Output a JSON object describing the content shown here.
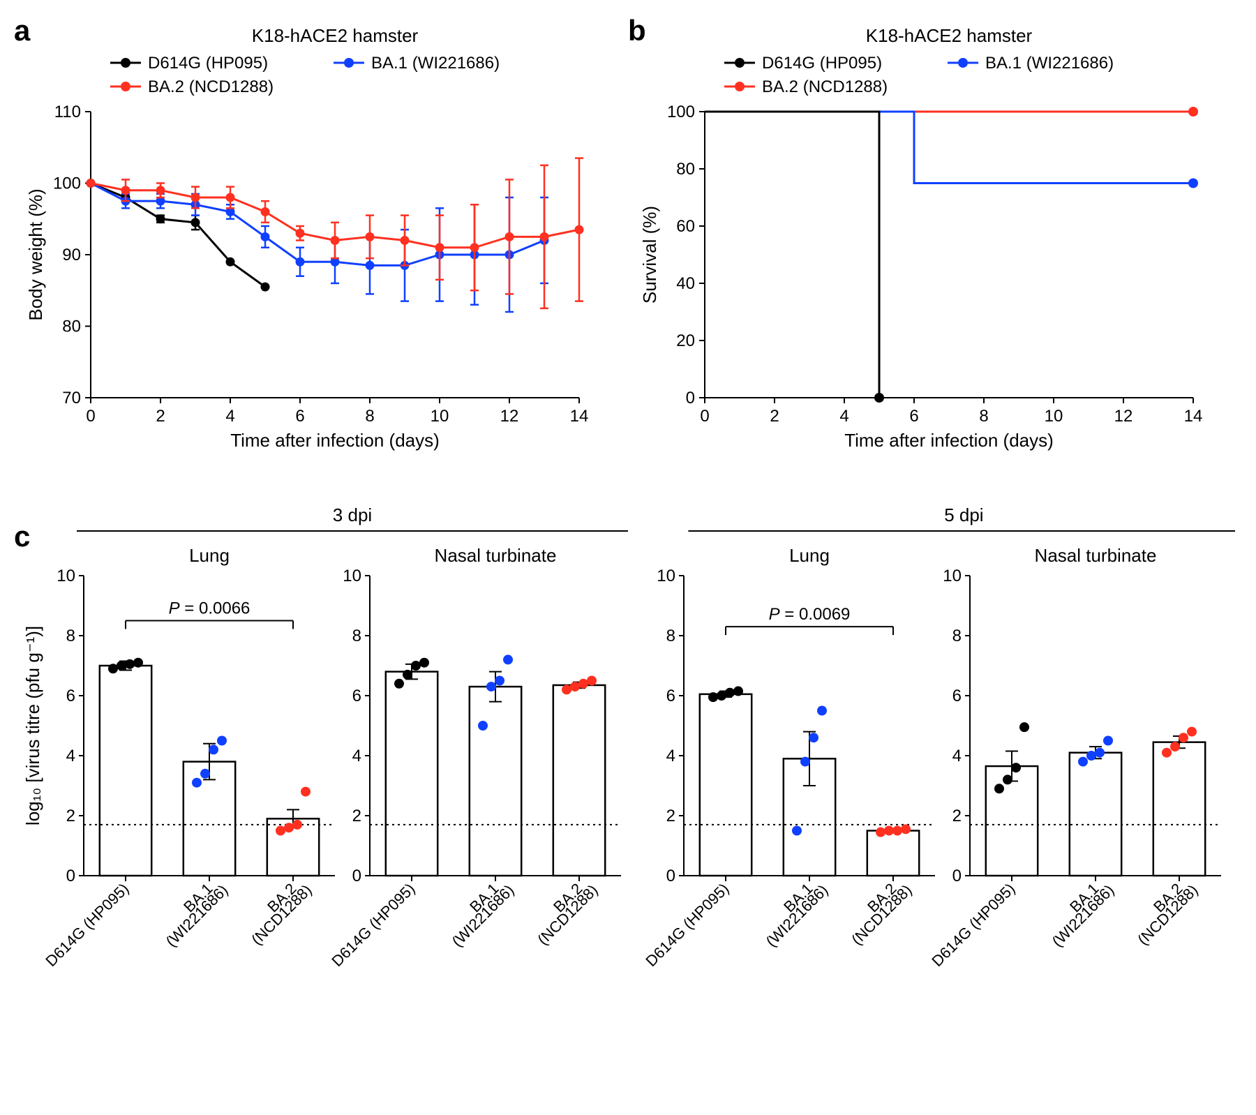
{
  "panelA": {
    "letter": "a",
    "title": "K18-hACE2 hamster",
    "x_label": "Time after infection (days)",
    "y_label": "Body weight (%)",
    "x_ticks": [
      0,
      2,
      4,
      6,
      8,
      10,
      12,
      14
    ],
    "y_ticks": [
      70,
      80,
      90,
      100,
      110
    ],
    "xlim": [
      0,
      14
    ],
    "ylim": [
      70,
      110
    ],
    "legend": [
      {
        "name": "D614G (HP095)",
        "color": "#000000"
      },
      {
        "name": "BA.1 (WI221686)",
        "color": "#1040ff"
      },
      {
        "name": "BA.2 (NCD1288)",
        "color": "#ff3020"
      }
    ],
    "series": [
      {
        "color": "#000000",
        "y": [
          100,
          98,
          95,
          94.5,
          89,
          85.5
        ],
        "err": [
          0,
          0.5,
          0.5,
          1,
          0,
          0
        ]
      },
      {
        "color": "#1040ff",
        "y": [
          100,
          97.5,
          97.5,
          97,
          96,
          92.5,
          89,
          89,
          88.5,
          88.5,
          90,
          90,
          90,
          92
        ],
        "err": [
          0,
          1,
          1,
          1.5,
          1,
          1.5,
          2,
          3,
          4,
          5,
          6.5,
          7,
          8,
          6
        ]
      },
      {
        "color": "#ff3020",
        "y": [
          100,
          99,
          99,
          98,
          98,
          96,
          93,
          92,
          92.5,
          92,
          91,
          91,
          92.5,
          92.5,
          93.5
        ],
        "err": [
          0,
          1.5,
          1,
          1.5,
          1.5,
          1.5,
          1,
          2.5,
          3,
          3.5,
          4.5,
          6,
          8,
          10,
          10
        ]
      }
    ]
  },
  "panelB": {
    "letter": "b",
    "title": "K18-hACE2 hamster",
    "x_label": "Time after infection (days)",
    "y_label": "Survival (%)",
    "x_ticks": [
      0,
      2,
      4,
      6,
      8,
      10,
      12,
      14
    ],
    "y_ticks": [
      0,
      20,
      40,
      60,
      80,
      100
    ],
    "xlim": [
      0,
      14
    ],
    "ylim": [
      0,
      100
    ],
    "legend": [
      {
        "name": "D614G (HP095)",
        "color": "#000000"
      },
      {
        "name": "BA.1 (WI221686)",
        "color": "#1040ff"
      },
      {
        "name": "BA.2 (NCD1288)",
        "color": "#ff3020"
      }
    ],
    "series": [
      {
        "color": "#000000",
        "steps": [
          [
            0,
            100
          ],
          [
            5,
            100
          ],
          [
            5,
            0
          ]
        ],
        "end_marker": true
      },
      {
        "color": "#1040ff",
        "steps": [
          [
            0,
            100
          ],
          [
            6,
            100
          ],
          [
            6,
            75
          ],
          [
            14,
            75
          ]
        ],
        "end_marker": true
      },
      {
        "color": "#ff3020",
        "steps": [
          [
            0,
            100
          ],
          [
            14,
            100
          ]
        ],
        "end_marker": true
      }
    ]
  },
  "panelC": {
    "letter": "c",
    "y_label": "log₁₀ [virus titre (pfu g⁻¹)]",
    "y_ticks": [
      0,
      2,
      4,
      6,
      8,
      10
    ],
    "ylim": [
      0,
      10
    ],
    "detection_limit": 1.7,
    "groups": [
      "3 dpi",
      "5 dpi"
    ],
    "subgroups": [
      "Lung",
      "Nasal turbinate"
    ],
    "categories": [
      "D614G (HP095)",
      "BA.1\n(WI221686)",
      "BA.2\n(NCD1288)"
    ],
    "colors": [
      "#000000",
      "#1040ff",
      "#ff3020"
    ],
    "panels": [
      {
        "title": "Lung",
        "p_annot": {
          "from": 0,
          "to": 2,
          "text": "P = 0.0066",
          "y": 8.5
        },
        "bars": [
          {
            "h": 7.0,
            "err": 0.15,
            "pts": [
              6.9,
              7.0,
              7.05,
              7.1
            ]
          },
          {
            "h": 3.8,
            "err": 0.6,
            "pts": [
              3.1,
              3.4,
              4.2,
              4.5
            ]
          },
          {
            "h": 1.9,
            "err": 0.3,
            "pts": [
              1.5,
              1.6,
              1.7,
              2.8
            ]
          }
        ]
      },
      {
        "title": "Nasal turbinate",
        "bars": [
          {
            "h": 6.8,
            "err": 0.25,
            "pts": [
              6.4,
              6.7,
              7.0,
              7.1
            ]
          },
          {
            "h": 6.3,
            "err": 0.5,
            "pts": [
              5.0,
              6.3,
              6.5,
              7.2
            ]
          },
          {
            "h": 6.35,
            "err": 0.1,
            "pts": [
              6.2,
              6.3,
              6.4,
              6.5
            ]
          }
        ]
      },
      {
        "title": "Lung",
        "p_annot": {
          "from": 0,
          "to": 2,
          "text": "P = 0.0069",
          "y": 8.3
        },
        "bars": [
          {
            "h": 6.05,
            "err": 0.1,
            "pts": [
              5.95,
              6.0,
              6.1,
              6.15
            ]
          },
          {
            "h": 3.9,
            "err": 0.9,
            "pts": [
              1.5,
              3.8,
              4.6,
              5.5
            ]
          },
          {
            "h": 1.5,
            "err": 0,
            "pts": [
              1.45,
              1.5,
              1.5,
              1.55
            ]
          }
        ]
      },
      {
        "title": "Nasal turbinate",
        "bars": [
          {
            "h": 3.65,
            "err": 0.5,
            "pts": [
              2.9,
              3.2,
              3.6,
              4.95
            ]
          },
          {
            "h": 4.1,
            "err": 0.2,
            "pts": [
              3.8,
              4.0,
              4.1,
              4.5
            ]
          },
          {
            "h": 4.45,
            "err": 0.2,
            "pts": [
              4.1,
              4.3,
              4.6,
              4.8
            ]
          }
        ]
      }
    ]
  }
}
